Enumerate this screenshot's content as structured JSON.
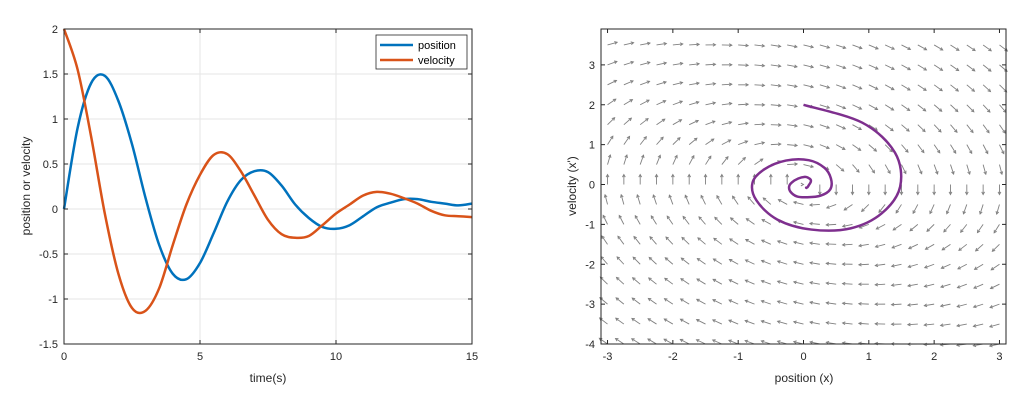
{
  "colors": {
    "position": "#0072BD",
    "velocity": "#D95319",
    "trajectory": "#7E2F8E",
    "quiver": "#808080",
    "grid": "#e6e6e6",
    "axis": "#262626"
  },
  "chart_data": [
    {
      "type": "line",
      "title": "",
      "xlabel": "time(s)",
      "ylabel": "position or velocity",
      "xlim": [
        0,
        15
      ],
      "ylim": [
        -1.5,
        2
      ],
      "xticks": [
        0,
        5,
        10,
        15
      ],
      "yticks": [
        -1.5,
        -1,
        -0.5,
        0,
        0.5,
        1,
        1.5,
        2
      ],
      "grid": true,
      "legend": "top-right",
      "series": [
        {
          "name": "position",
          "color": "#0072BD",
          "x": [
            0,
            0.5,
            1,
            1.5,
            2,
            2.5,
            3,
            3.5,
            4,
            4.5,
            5,
            5.5,
            6,
            6.5,
            7,
            7.5,
            8,
            8.5,
            9,
            9.5,
            10,
            10.5,
            11,
            11.5,
            12,
            12.5,
            13,
            13.5,
            14,
            14.5,
            15
          ],
          "values": [
            0,
            0.9,
            1.4,
            1.48,
            1.2,
            0.72,
            0.12,
            -0.4,
            -0.72,
            -0.78,
            -0.6,
            -0.27,
            0.08,
            0.32,
            0.42,
            0.41,
            0.26,
            0.05,
            -0.1,
            -0.2,
            -0.22,
            -0.18,
            -0.08,
            0.02,
            0.07,
            0.11,
            0.11,
            0.08,
            0.06,
            0.04,
            0.06
          ]
        },
        {
          "name": "velocity",
          "color": "#D95319",
          "x": [
            0,
            0.5,
            1,
            1.5,
            2,
            2.5,
            3,
            3.5,
            4,
            4.5,
            5,
            5.5,
            6,
            6.5,
            7,
            7.5,
            8,
            8.5,
            9,
            9.5,
            10,
            10.5,
            11,
            11.5,
            12,
            12.5,
            13,
            13.5,
            14,
            14.5,
            15
          ],
          "values": [
            2,
            1.55,
            0.8,
            -0.05,
            -0.72,
            -1.1,
            -1.13,
            -0.88,
            -0.4,
            0.05,
            0.38,
            0.6,
            0.61,
            0.42,
            0.15,
            -0.12,
            -0.28,
            -0.32,
            -0.3,
            -0.18,
            -0.05,
            0.05,
            0.15,
            0.19,
            0.17,
            0.12,
            0.06,
            -0.02,
            -0.07,
            -0.08,
            -0.09
          ]
        }
      ]
    },
    {
      "type": "quiver",
      "title": "",
      "xlabel": "position (x)",
      "ylabel": "velocity (x')",
      "xlim": [
        -3.1,
        3.1
      ],
      "ylim": [
        -4,
        3.9
      ],
      "xticks": [
        -3,
        -2,
        -1,
        0,
        1,
        2,
        3
      ],
      "yticks": [
        -4,
        -3,
        -2,
        -1,
        0,
        1,
        2,
        3
      ],
      "grid": false,
      "field": {
        "dx": "y",
        "dy": "-x - 0.4*y",
        "x_step": 0.25,
        "y_step": 0.5,
        "color": "#808080"
      },
      "series": [
        {
          "color": "#7E2F8E",
          "x": [
            0,
            0.9,
            1.4,
            1.48,
            1.2,
            0.72,
            0.12,
            -0.4,
            -0.72,
            -0.78,
            -0.6,
            -0.27,
            0.08,
            0.32,
            0.42,
            0.41,
            0.26,
            0.05,
            -0.1,
            -0.2,
            -0.22,
            -0.18,
            -0.08,
            0.02,
            0.07,
            0.11,
            0.11,
            0.08,
            0.06,
            0.04,
            0.06
          ],
          "values": [
            2,
            1.55,
            0.8,
            -0.05,
            -0.72,
            -1.1,
            -1.13,
            -0.88,
            -0.4,
            0.05,
            0.38,
            0.6,
            0.61,
            0.42,
            0.15,
            -0.12,
            -0.28,
            -0.32,
            -0.3,
            -0.18,
            -0.05,
            0.05,
            0.15,
            0.19,
            0.17,
            0.12,
            0.06,
            -0.02,
            -0.07,
            -0.08,
            -0.09
          ]
        }
      ]
    }
  ]
}
